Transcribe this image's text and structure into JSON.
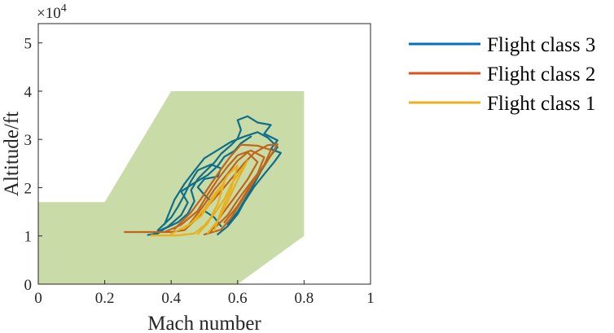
{
  "chart_data": {
    "type": "line",
    "title": "",
    "xlabel": "Mach number",
    "ylabel": "Altitude/ft",
    "xlim": [
      0,
      1
    ],
    "ylim": [
      0,
      54000
    ],
    "x_ticks": [
      0,
      0.2,
      0.4,
      0.6,
      0.8,
      1
    ],
    "x_tick_labels": [
      "0",
      "0.2",
      "0.4",
      "0.6",
      "0.8",
      "1"
    ],
    "y_ticks": [
      0,
      10000,
      20000,
      30000,
      40000,
      50000
    ],
    "y_tick_labels": [
      "0",
      "1",
      "2",
      "3",
      "4",
      "5"
    ],
    "y_exponent_label": "×10",
    "y_exponent_power": "4",
    "grid": false,
    "legend_position": "outside-right",
    "envelope": {
      "color": "#c9dba6",
      "points": [
        [
          0,
          0
        ],
        [
          0,
          17000
        ],
        [
          0.2,
          17000
        ],
        [
          0.4,
          40000
        ],
        [
          0.8,
          40000
        ],
        [
          0.8,
          10000
        ],
        [
          0.6,
          0
        ]
      ]
    },
    "series": [
      {
        "name": "Flight class 3",
        "color": "#0f6e8c",
        "legend_color": "#0072bd",
        "paths": [
          [
            [
              0.33,
              10200
            ],
            [
              0.36,
              10500
            ],
            [
              0.38,
              11500
            ],
            [
              0.42,
              12800
            ],
            [
              0.45,
              14600
            ],
            [
              0.47,
              17200
            ],
            [
              0.46,
              19500
            ],
            [
              0.48,
              21800
            ],
            [
              0.5,
              23200
            ],
            [
              0.53,
              25200
            ],
            [
              0.55,
              27000
            ],
            [
              0.58,
              28800
            ],
            [
              0.6,
              30200
            ],
            [
              0.61,
              32000
            ],
            [
              0.6,
              34000
            ],
            [
              0.63,
              34800
            ],
            [
              0.66,
              33500
            ],
            [
              0.7,
              33000
            ],
            [
              0.68,
              31200
            ],
            [
              0.72,
              29800
            ],
            [
              0.7,
              28000
            ],
            [
              0.73,
              27200
            ],
            [
              0.71,
              25300
            ],
            [
              0.68,
              22800
            ],
            [
              0.65,
              20200
            ],
            [
              0.62,
              17000
            ],
            [
              0.6,
              14500
            ],
            [
              0.57,
              12000
            ],
            [
              0.54,
              10300
            ]
          ],
          [
            [
              0.36,
              11200
            ],
            [
              0.4,
              13800
            ],
            [
              0.42,
              16000
            ],
            [
              0.44,
              18500
            ],
            [
              0.46,
              21400
            ],
            [
              0.48,
              23600
            ],
            [
              0.52,
              24800
            ],
            [
              0.55,
              24000
            ],
            [
              0.54,
              22300
            ],
            [
              0.5,
              21800
            ],
            [
              0.48,
              20100
            ],
            [
              0.5,
              18500
            ],
            [
              0.52,
              17200
            ],
            [
              0.5,
              15200
            ],
            [
              0.53,
              13800
            ],
            [
              0.55,
              12000
            ]
          ],
          [
            [
              0.38,
              12400
            ],
            [
              0.41,
              17500
            ],
            [
              0.44,
              20800
            ],
            [
              0.47,
              23500
            ],
            [
              0.5,
              26100
            ],
            [
              0.54,
              27800
            ],
            [
              0.58,
              29500
            ],
            [
              0.62,
              30600
            ],
            [
              0.66,
              31500
            ],
            [
              0.69,
              30400
            ],
            [
              0.72,
              28400
            ],
            [
              0.7,
              26700
            ],
            [
              0.67,
              23400
            ],
            [
              0.64,
              19600
            ],
            [
              0.6,
              15000
            ],
            [
              0.57,
              12400
            ]
          ],
          [
            [
              0.35,
              10600
            ],
            [
              0.39,
              11900
            ],
            [
              0.43,
              14300
            ],
            [
              0.45,
              16900
            ],
            [
              0.43,
              19200
            ],
            [
              0.47,
              21000
            ],
            [
              0.51,
              22600
            ],
            [
              0.54,
              24500
            ],
            [
              0.56,
              26400
            ],
            [
              0.59,
              27600
            ],
            [
              0.61,
              29200
            ],
            [
              0.64,
              30600
            ]
          ]
        ]
      },
      {
        "name": "Flight class 2",
        "color": "#c0651b",
        "legend_color": "#d95319",
        "paths": [
          [
            [
              0.26,
              10800
            ],
            [
              0.34,
              10800
            ],
            [
              0.4,
              10800
            ],
            [
              0.44,
              11200
            ],
            [
              0.47,
              13100
            ],
            [
              0.5,
              15400
            ],
            [
              0.53,
              17700
            ],
            [
              0.56,
              20100
            ],
            [
              0.59,
              22600
            ],
            [
              0.62,
              25100
            ],
            [
              0.65,
              27200
            ],
            [
              0.69,
              28800
            ],
            [
              0.72,
              29000
            ],
            [
              0.7,
              26700
            ],
            [
              0.67,
              23600
            ],
            [
              0.64,
              20300
            ],
            [
              0.61,
              17000
            ],
            [
              0.58,
              13700
            ],
            [
              0.55,
              11300
            ],
            [
              0.5,
              10300
            ]
          ],
          [
            [
              0.41,
              11400
            ],
            [
              0.46,
              14900
            ],
            [
              0.49,
              17700
            ],
            [
              0.52,
              20800
            ],
            [
              0.55,
              23800
            ],
            [
              0.58,
              26600
            ],
            [
              0.61,
              28900
            ],
            [
              0.66,
              28700
            ],
            [
              0.7,
              27800
            ],
            [
              0.68,
              24700
            ],
            [
              0.64,
              21100
            ],
            [
              0.6,
              17400
            ],
            [
              0.57,
              14300
            ],
            [
              0.53,
              11600
            ]
          ],
          [
            [
              0.38,
              10800
            ],
            [
              0.43,
              12300
            ],
            [
              0.48,
              15200
            ],
            [
              0.51,
              18600
            ],
            [
              0.54,
              21700
            ],
            [
              0.57,
              24400
            ],
            [
              0.6,
              26700
            ],
            [
              0.64,
              27700
            ],
            [
              0.68,
              26300
            ],
            [
              0.66,
              22900
            ],
            [
              0.63,
              19500
            ],
            [
              0.6,
              16200
            ],
            [
              0.56,
              12800
            ]
          ],
          [
            [
              0.45,
              12000
            ],
            [
              0.5,
              16500
            ],
            [
              0.53,
              19600
            ],
            [
              0.57,
              22900
            ],
            [
              0.6,
              25600
            ],
            [
              0.63,
              27300
            ],
            [
              0.66,
              25300
            ],
            [
              0.63,
              21700
            ],
            [
              0.59,
              17900
            ],
            [
              0.55,
              14200
            ],
            [
              0.52,
              11000
            ]
          ]
        ]
      },
      {
        "name": "Flight class 1",
        "color": "#e8b01c",
        "legend_color": "#edb120",
        "paths": [
          [
            [
              0.34,
              10100
            ],
            [
              0.42,
              10100
            ],
            [
              0.47,
              10500
            ],
            [
              0.5,
              12200
            ],
            [
              0.53,
              14600
            ],
            [
              0.56,
              17600
            ],
            [
              0.58,
              20600
            ],
            [
              0.61,
              23600
            ],
            [
              0.63,
              25600
            ],
            [
              0.6,
              21600
            ],
            [
              0.57,
              17100
            ],
            [
              0.54,
              13100
            ],
            [
              0.51,
              10600
            ]
          ],
          [
            [
              0.44,
              11600
            ],
            [
              0.49,
              14100
            ],
            [
              0.52,
              17100
            ],
            [
              0.55,
              20100
            ],
            [
              0.57,
              22600
            ],
            [
              0.6,
              24600
            ],
            [
              0.58,
              19600
            ],
            [
              0.55,
              15100
            ],
            [
              0.53,
              11100
            ]
          ],
          [
            [
              0.4,
              10400
            ],
            [
              0.46,
              12600
            ],
            [
              0.5,
              15600
            ],
            [
              0.53,
              18600
            ],
            [
              0.56,
              21100
            ],
            [
              0.54,
              16600
            ],
            [
              0.51,
              12600
            ],
            [
              0.48,
              10400
            ]
          ]
        ]
      }
    ]
  }
}
